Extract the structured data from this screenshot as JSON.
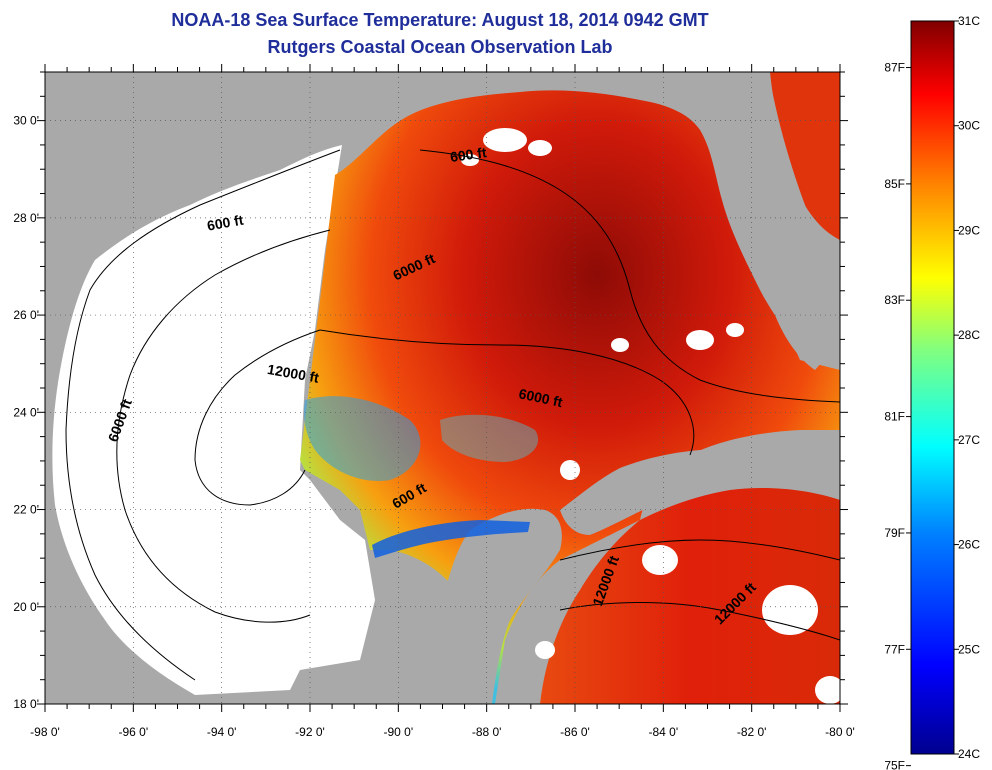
{
  "title": {
    "line1": "NOAA-18 Sea Surface Temperature:  August 18, 2014 0942 GMT",
    "line2": "Rutgers Coastal Ocean Observation Lab"
  },
  "colors": {
    "land": "#a9a9a9",
    "no_data": "#ffffff",
    "title": "#1f2e9a",
    "contour": "#000000"
  },
  "map": {
    "lon_labels": [
      "-98 0'",
      "-96 0'",
      "-94 0'",
      "-92 0'",
      "-90 0'",
      "-88 0'",
      "-86 0'",
      "-84 0'",
      "-82 0'",
      "-80 0'"
    ],
    "lat_labels": [
      "30 0'",
      "28 0'",
      "26 0'",
      "24 0'",
      "22 0'",
      "20 0'",
      "18 0'"
    ],
    "contour_labels": [
      {
        "text": "600 ft",
        "lon": -88.4,
        "lat": 29.2,
        "rot": -8
      },
      {
        "text": "600 ft",
        "lon": -93.9,
        "lat": 27.8,
        "rot": -10
      },
      {
        "text": "6000 ft",
        "lon": -89.6,
        "lat": 26.9,
        "rot": -25
      },
      {
        "text": "12000 ft",
        "lon": -92.4,
        "lat": 24.7,
        "rot": 10
      },
      {
        "text": "6000 ft",
        "lon": -86.8,
        "lat": 24.2,
        "rot": 12
      },
      {
        "text": "6000 ft",
        "lon": -96.2,
        "lat": 23.8,
        "rot": -70
      },
      {
        "text": "600 ft",
        "lon": -89.7,
        "lat": 22.2,
        "rot": -30
      },
      {
        "text": "12000 ft",
        "lon": -85.2,
        "lat": 20.5,
        "rot": -70
      },
      {
        "text": "12000 ft",
        "lon": -82.3,
        "lat": 20.0,
        "rot": -45
      }
    ]
  },
  "colorbar": {
    "celsius_labels": [
      "31C",
      "30C",
      "29C",
      "28C",
      "27C",
      "26C",
      "25C",
      "24C"
    ],
    "fahrenheit_labels": [
      "87F",
      "85F",
      "83F",
      "81F",
      "79F",
      "77F",
      "75F"
    ],
    "celsius_range": [
      24,
      31
    ],
    "gradient": [
      "#00008f",
      "#0000ff",
      "#0080ff",
      "#00ffff",
      "#80ff80",
      "#ffff00",
      "#ff8000",
      "#ff0000",
      "#800000"
    ]
  }
}
